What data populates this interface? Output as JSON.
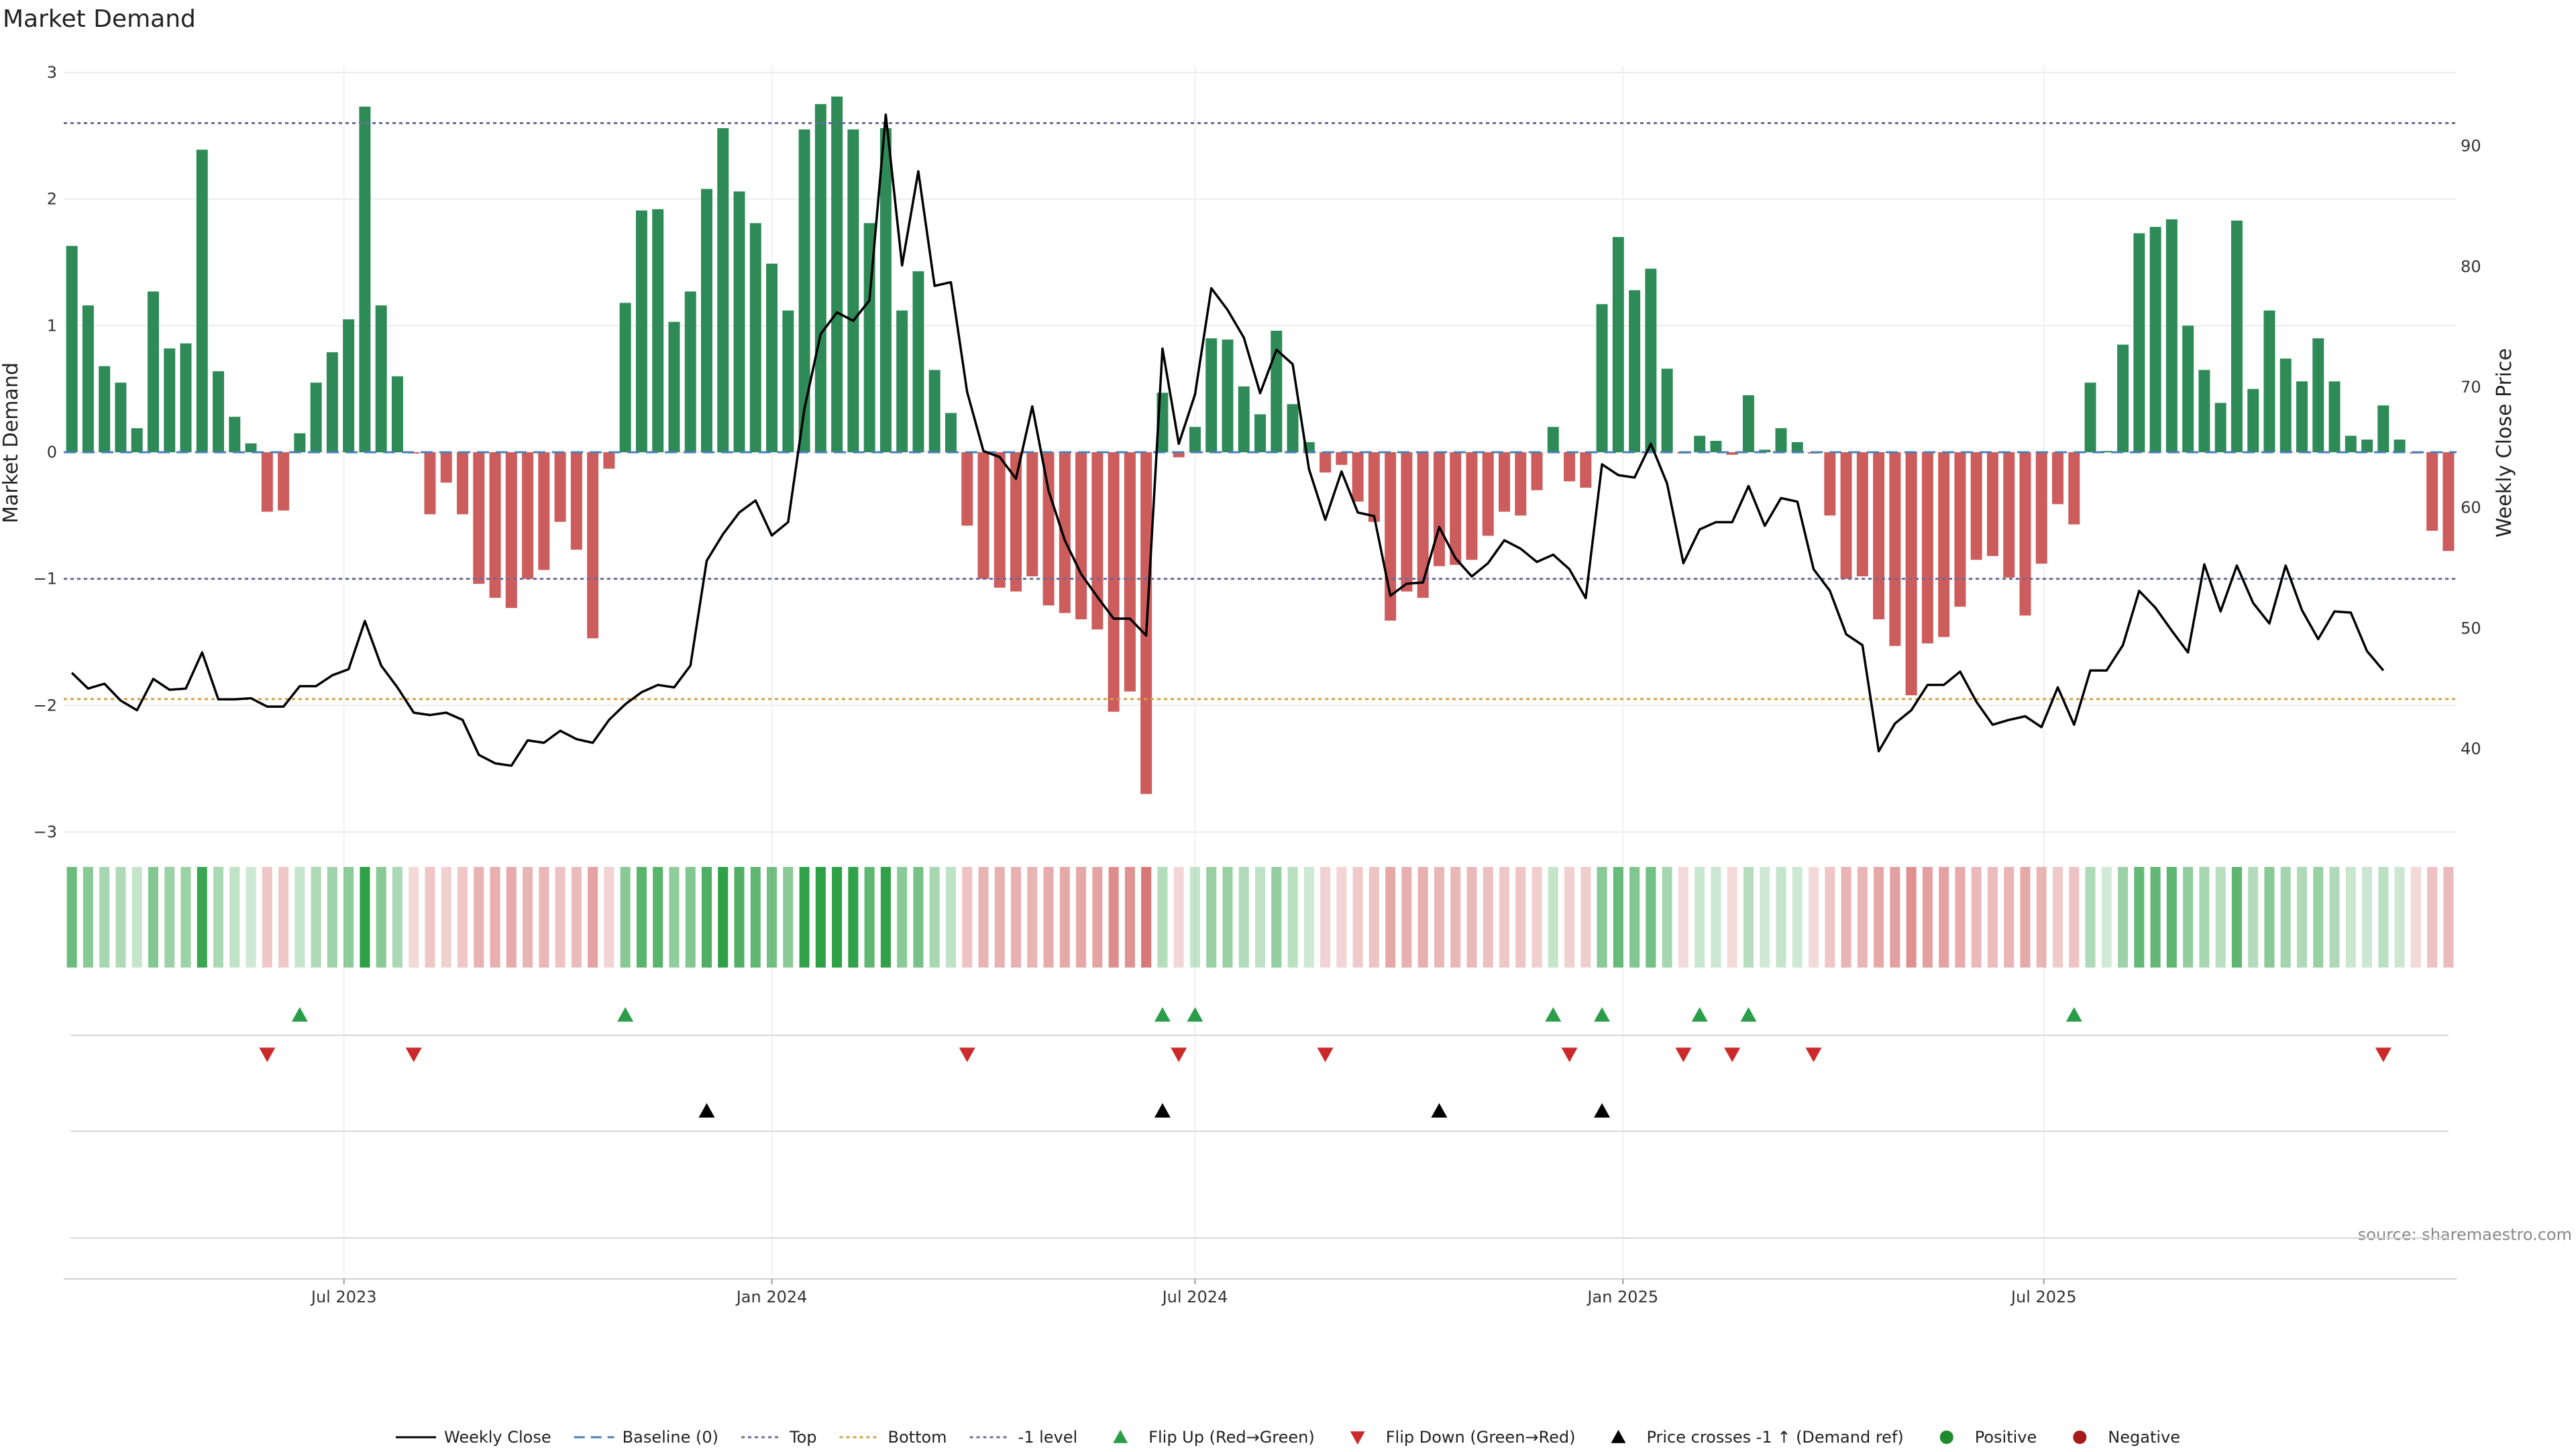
{
  "chart_data": {
    "type": "bar",
    "title": "Market Demand",
    "ylabel": "Market Demand",
    "y2label": "Weekly Close Price",
    "ylim": [
      -3,
      3
    ],
    "y2lim": [
      33.1,
      96.1
    ],
    "yticks": [
      3,
      2,
      1,
      0,
      -1,
      -2,
      -3
    ],
    "yticks_labels": [
      "3",
      "2",
      "1",
      "0",
      "−1",
      "−2",
      "−3"
    ],
    "y2ticks": [
      90,
      80,
      70,
      60,
      50,
      40
    ],
    "y2ticks_labels": [
      "90",
      "80",
      "70",
      "60",
      "50",
      "40"
    ],
    "x_start": "2023-03-06",
    "x_step_days": 7,
    "xticks": [
      {
        "date": "2023-07-01",
        "label": "Jul 2023"
      },
      {
        "date": "2024-01-01",
        "label": "Jan 2024"
      },
      {
        "date": "2024-07-01",
        "label": "Jul 2024"
      },
      {
        "date": "2025-01-01",
        "label": "Jan 2025"
      },
      {
        "date": "2025-07-01",
        "label": "Jul 2025"
      }
    ],
    "reference_lines": [
      {
        "name": "Top",
        "value": 2.6,
        "color": "#6b6b9a",
        "style": "dotted"
      },
      {
        "name": "-1 level",
        "value": -1,
        "color": "#6b6b9a",
        "style": "dotted"
      },
      {
        "name": "Bottom",
        "value": -1.95,
        "color": "#d4a040",
        "style": "dotted"
      },
      {
        "name": "Baseline (0)",
        "value": 0,
        "color": "#4a7fb5",
        "style": "dashed"
      }
    ],
    "demand": [
      1.63,
      1.16,
      0.68,
      0.55,
      0.19,
      1.27,
      0.82,
      0.86,
      2.39,
      0.64,
      0.28,
      0.07,
      -0.47,
      -0.46,
      0.15,
      0.55,
      0.79,
      1.05,
      2.73,
      1.16,
      0.6,
      -0.01,
      -0.49,
      -0.24,
      -0.49,
      -1.04,
      -1.15,
      -1.23,
      -1.0,
      -0.93,
      -0.55,
      -0.77,
      -1.47,
      -0.13,
      1.18,
      1.91,
      1.92,
      1.03,
      1.27,
      2.08,
      2.56,
      2.06,
      1.81,
      1.49,
      1.12,
      2.55,
      2.75,
      2.81,
      2.55,
      1.81,
      2.56,
      1.12,
      1.43,
      0.65,
      0.31,
      -0.58,
      -1.0,
      -1.07,
      -1.1,
      -0.98,
      -1.21,
      -1.27,
      -1.32,
      -1.4,
      -2.05,
      -1.89,
      -2.7,
      0.47,
      -0.04,
      0.2,
      0.9,
      0.89,
      0.52,
      0.3,
      0.96,
      0.38,
      0.08,
      -0.16,
      -0.1,
      -0.39,
      -0.55,
      -1.33,
      -1.1,
      -1.15,
      -0.9,
      -0.89,
      -0.85,
      -0.66,
      -0.47,
      -0.5,
      -0.3,
      0.2,
      -0.23,
      -0.28,
      1.17,
      1.7,
      1.28,
      1.45,
      0.66,
      -0.01,
      0.13,
      0.09,
      -0.02,
      0.45,
      0.02,
      0.19,
      0.08,
      -0.01,
      -0.5,
      -1.0,
      -0.98,
      -1.32,
      -1.53,
      -1.92,
      -1.51,
      -1.46,
      -1.22,
      -0.85,
      -0.82,
      -0.99,
      -1.29,
      -0.88,
      -0.41,
      -0.57,
      0.55,
      0.01,
      0.85,
      1.73,
      1.78,
      1.84,
      1.0,
      0.65,
      0.39,
      1.83,
      0.5,
      1.12,
      0.74,
      0.56,
      0.9,
      0.56,
      0.13,
      0.1,
      0.37,
      0.1,
      -0.01,
      -0.62,
      -0.78
    ],
    "close": [
      46.3,
      45.0,
      45.4,
      44.0,
      43.2,
      45.8,
      44.9,
      45.0,
      48.0,
      44.1,
      44.1,
      44.2,
      43.5,
      43.5,
      45.2,
      45.2,
      46.1,
      46.6,
      50.6,
      46.9,
      45.1,
      43.0,
      42.8,
      43.0,
      42.4,
      39.5,
      38.8,
      38.6,
      40.7,
      40.5,
      41.5,
      40.8,
      40.5,
      42.4,
      43.7,
      44.7,
      45.3,
      45.1,
      46.9,
      55.6,
      57.8,
      59.6,
      60.6,
      57.7,
      58.8,
      68.2,
      74.4,
      76.2,
      75.5,
      77.2,
      92.6,
      80.1,
      87.9,
      78.4,
      78.7,
      69.6,
      64.7,
      64.2,
      62.4,
      68.4,
      61.4,
      57.3,
      54.5,
      52.6,
      50.8,
      50.8,
      49.4,
      73.2,
      65.3,
      69.4,
      78.2,
      76.4,
      74.1,
      69.5,
      73.1,
      71.9,
      63.2,
      59.0,
      63.0,
      59.6,
      59.3,
      52.7,
      53.7,
      53.8,
      58.4,
      55.8,
      54.3,
      55.4,
      57.3,
      56.6,
      55.5,
      56.1,
      54.9,
      52.5,
      63.6,
      62.7,
      62.5,
      65.3,
      62.0,
      55.4,
      58.2,
      58.8,
      58.8,
      61.8,
      58.5,
      60.8,
      60.5,
      54.9,
      53.1,
      49.5,
      48.6,
      39.8,
      42.1,
      43.2,
      45.3,
      45.3,
      46.4,
      43.9,
      42.0,
      42.4,
      42.7,
      41.8,
      45.1,
      42.0,
      46.5,
      46.5,
      48.6,
      53.1,
      51.7,
      49.8,
      48.0,
      55.3,
      51.4,
      55.2,
      52.1,
      50.4,
      55.2,
      51.5,
      49.1,
      51.4,
      51.3,
      48.1,
      46.5
    ],
    "flip_up": [
      14,
      34,
      67,
      69,
      91,
      94,
      100,
      103,
      123
    ],
    "flip_down": [
      12,
      21,
      55,
      68,
      77,
      92,
      99,
      102,
      107,
      142
    ],
    "price_cross": [
      39,
      67,
      84,
      94
    ],
    "colors": {
      "positive": "#2e8b57",
      "negative": "#cd5c5c",
      "close_line": "#000000",
      "flip_up": "#2a9d48",
      "flip_down": "#cc2a2a",
      "price_cross": "#000000",
      "positive_dot": "#1f8a2a",
      "negative_dot": "#a61c1c"
    },
    "legend": [
      {
        "key": "close",
        "label": "Weekly Close"
      },
      {
        "key": "baseline",
        "label": "Baseline (0)"
      },
      {
        "key": "top",
        "label": "Top"
      },
      {
        "key": "bottom",
        "label": "Bottom"
      },
      {
        "key": "minus1",
        "label": "-1 level"
      },
      {
        "key": "flipup",
        "label": "Flip Up (Red→Green)"
      },
      {
        "key": "flipdown",
        "label": "Flip Down (Green→Red)"
      },
      {
        "key": "cross",
        "label": "Price crosses -1 ↑ (Demand ref)"
      },
      {
        "key": "pos",
        "label": "Positive"
      },
      {
        "key": "neg",
        "label": "Negative"
      }
    ],
    "source": "source: sharemaestro.com"
  }
}
